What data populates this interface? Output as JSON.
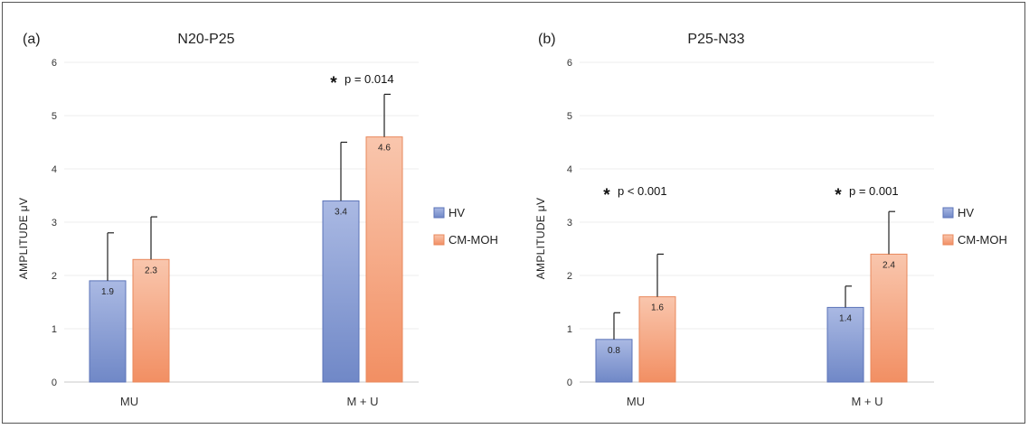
{
  "legend": [
    {
      "name": "HV",
      "color": "#8a9fd6"
    },
    {
      "name": "CM-MOH",
      "color": "#f5a07e"
    }
  ],
  "chart_data": [
    {
      "type": "bar",
      "panel": "(a)",
      "title": "N20-P25",
      "ylabel": "AMPLITUDE μV",
      "ylim": [
        0,
        6
      ],
      "yticks": [
        0,
        1,
        2,
        3,
        4,
        5,
        6
      ],
      "grid": true,
      "legend_position": "right",
      "categories": [
        "MU",
        "M + U"
      ],
      "series": [
        {
          "name": "HV",
          "values": [
            1.9,
            3.4
          ],
          "error": [
            0.9,
            1.1
          ],
          "labels": [
            "1.9",
            "3.4"
          ]
        },
        {
          "name": "CM-MOH",
          "values": [
            2.3,
            4.6
          ],
          "error": [
            0.8,
            0.8
          ],
          "labels": [
            "2.3",
            "4.6"
          ]
        }
      ],
      "annotations": [
        {
          "category": "M + U",
          "star": "*",
          "text": "p = 0.014"
        }
      ]
    },
    {
      "type": "bar",
      "panel": "(b)",
      "title": "P25-N33",
      "ylabel": "AMPLITUDE μV",
      "ylim": [
        0,
        6
      ],
      "yticks": [
        0,
        1,
        2,
        3,
        4,
        5,
        6
      ],
      "grid": true,
      "legend_position": "right",
      "categories": [
        "MU",
        "M + U"
      ],
      "series": [
        {
          "name": "HV",
          "values": [
            0.8,
            1.4
          ],
          "error": [
            0.5,
            0.4
          ],
          "labels": [
            "0.8",
            "1.4"
          ]
        },
        {
          "name": "CM-MOH",
          "values": [
            1.6,
            2.4
          ],
          "error": [
            0.8,
            0.8
          ],
          "labels": [
            "1.6",
            "2.4"
          ]
        }
      ],
      "annotations": [
        {
          "category": "MU",
          "star": "*",
          "text": "p < 0.001"
        },
        {
          "category": "M + U",
          "star": "*",
          "text": "p = 0.001"
        }
      ]
    }
  ]
}
